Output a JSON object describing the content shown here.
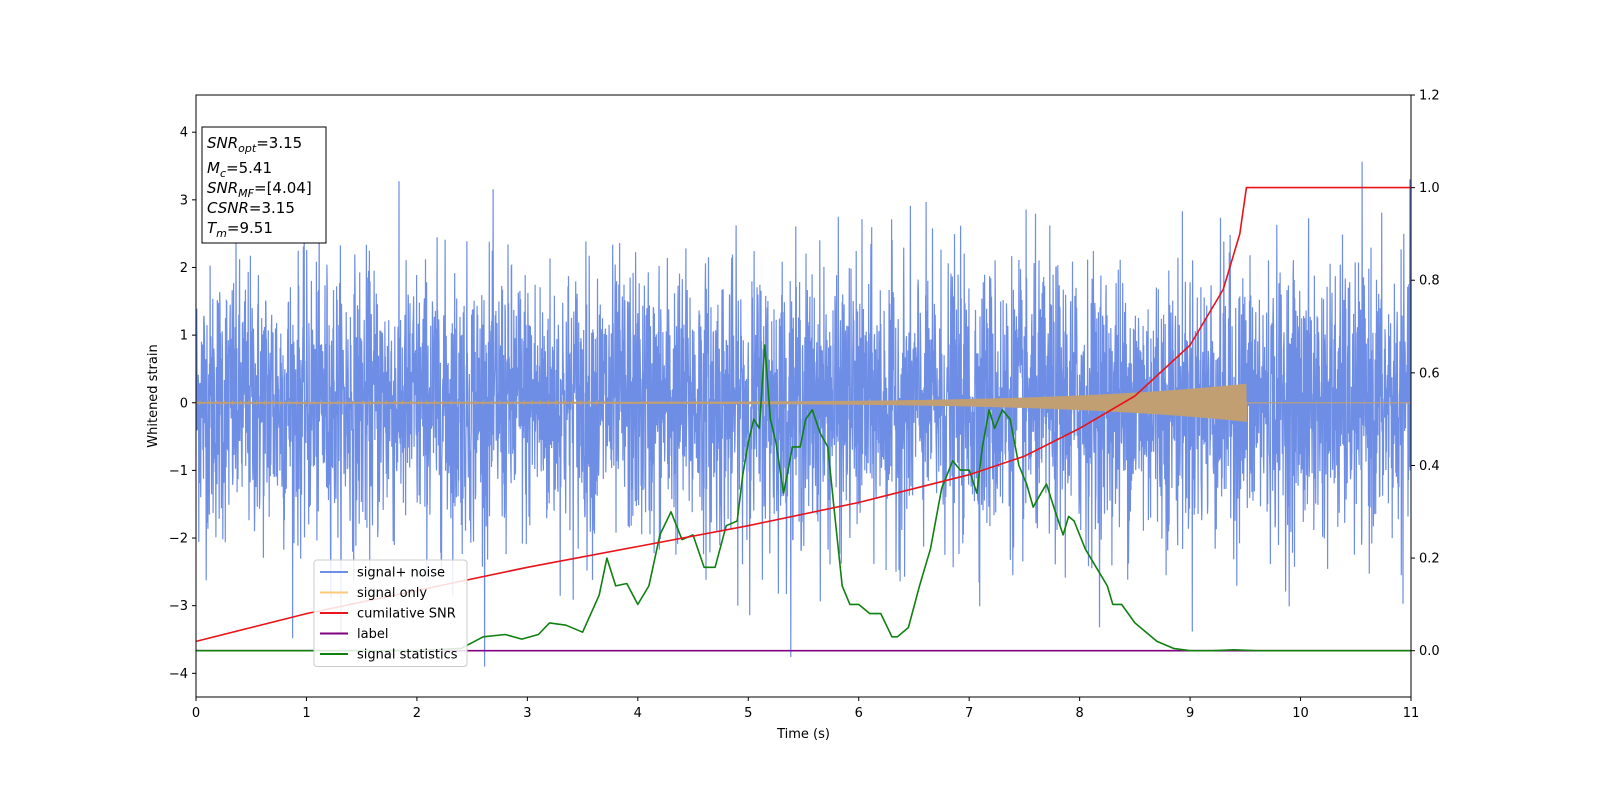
{
  "chart_data": {
    "type": "line",
    "xlabel": "Time (s)",
    "ylabel": "Whitened strain",
    "xlim": [
      0,
      11
    ],
    "ylim_left": [
      -4.35,
      4.55
    ],
    "ylim_right": [
      -0.1,
      1.2
    ],
    "x_ticks": [
      0,
      1,
      2,
      3,
      4,
      5,
      6,
      7,
      8,
      9,
      10,
      11
    ],
    "y_ticks_left": [
      -4,
      -3,
      -2,
      -1,
      0,
      1,
      2,
      3,
      4
    ],
    "y_ticks_right": [
      0.0,
      0.2,
      0.4,
      0.6,
      0.8,
      1.0,
      1.2
    ],
    "grid": false,
    "legend_position": "lower-left",
    "series": [
      {
        "name": "signal+ noise",
        "axis": "left",
        "color": "#6e8ee6",
        "style": "dense noise, approx range -3.9 to 4.0",
        "points": [
          [
            0,
            0.2
          ],
          [
            1,
            -0.3
          ],
          [
            2,
            0.4
          ],
          [
            3,
            -0.5
          ],
          [
            4,
            0.3
          ],
          [
            5,
            -0.2
          ],
          [
            6,
            0.5
          ],
          [
            7,
            -0.4
          ],
          [
            8,
            0.2
          ],
          [
            9,
            -0.1
          ],
          [
            10,
            0.3
          ],
          [
            11,
            0.0
          ]
        ]
      },
      {
        "name": "signal only",
        "axis": "left",
        "color": "#fbc97a",
        "style": "chirp growing to amplitude ~0.28 at 9.51 s, then zero",
        "points": [
          [
            0,
            0.0
          ],
          [
            9.51,
            0.0
          ],
          [
            11,
            0.0
          ]
        ]
      },
      {
        "name": "cumilative SNR",
        "axis": "right",
        "color": "#e8141a",
        "points": [
          [
            0,
            0.02
          ],
          [
            0.5,
            0.05
          ],
          [
            1,
            0.08
          ],
          [
            2,
            0.13
          ],
          [
            3,
            0.18
          ],
          [
            4,
            0.225
          ],
          [
            5,
            0.27
          ],
          [
            6,
            0.32
          ],
          [
            7,
            0.38
          ],
          [
            7.5,
            0.42
          ],
          [
            8,
            0.48
          ],
          [
            8.5,
            0.55
          ],
          [
            9,
            0.66
          ],
          [
            9.3,
            0.78
          ],
          [
            9.45,
            0.9
          ],
          [
            9.51,
            1.0
          ],
          [
            11,
            1.0
          ]
        ]
      },
      {
        "name": "label",
        "axis": "right",
        "color": "#800080",
        "points": [
          [
            0,
            0.0
          ],
          [
            11,
            0.0
          ]
        ]
      },
      {
        "name": "signal statistics",
        "axis": "right",
        "color": "#118011",
        "points": [
          [
            0,
            0.0
          ],
          [
            2.0,
            0.0
          ],
          [
            2.4,
            0.005
          ],
          [
            2.6,
            0.03
          ],
          [
            2.8,
            0.035
          ],
          [
            2.95,
            0.025
          ],
          [
            3.1,
            0.035
          ],
          [
            3.2,
            0.06
          ],
          [
            3.35,
            0.055
          ],
          [
            3.5,
            0.04
          ],
          [
            3.65,
            0.12
          ],
          [
            3.72,
            0.2
          ],
          [
            3.8,
            0.14
          ],
          [
            3.9,
            0.145
          ],
          [
            4.0,
            0.1
          ],
          [
            4.1,
            0.14
          ],
          [
            4.2,
            0.25
          ],
          [
            4.3,
            0.3
          ],
          [
            4.4,
            0.24
          ],
          [
            4.5,
            0.25
          ],
          [
            4.6,
            0.18
          ],
          [
            4.7,
            0.18
          ],
          [
            4.8,
            0.27
          ],
          [
            4.9,
            0.28
          ],
          [
            4.95,
            0.38
          ],
          [
            5.0,
            0.45
          ],
          [
            5.05,
            0.5
          ],
          [
            5.1,
            0.48
          ],
          [
            5.15,
            0.66
          ],
          [
            5.2,
            0.5
          ],
          [
            5.25,
            0.45
          ],
          [
            5.32,
            0.34
          ],
          [
            5.4,
            0.44
          ],
          [
            5.47,
            0.44
          ],
          [
            5.52,
            0.5
          ],
          [
            5.58,
            0.52
          ],
          [
            5.65,
            0.47
          ],
          [
            5.72,
            0.44
          ],
          [
            5.78,
            0.3
          ],
          [
            5.85,
            0.14
          ],
          [
            5.92,
            0.1
          ],
          [
            6.0,
            0.1
          ],
          [
            6.1,
            0.08
          ],
          [
            6.2,
            0.08
          ],
          [
            6.3,
            0.03
          ],
          [
            6.35,
            0.03
          ],
          [
            6.45,
            0.05
          ],
          [
            6.55,
            0.14
          ],
          [
            6.65,
            0.22
          ],
          [
            6.75,
            0.35
          ],
          [
            6.85,
            0.41
          ],
          [
            6.92,
            0.39
          ],
          [
            7.0,
            0.39
          ],
          [
            7.07,
            0.34
          ],
          [
            7.12,
            0.44
          ],
          [
            7.18,
            0.52
          ],
          [
            7.23,
            0.48
          ],
          [
            7.3,
            0.52
          ],
          [
            7.37,
            0.5
          ],
          [
            7.45,
            0.4
          ],
          [
            7.52,
            0.36
          ],
          [
            7.58,
            0.31
          ],
          [
            7.65,
            0.34
          ],
          [
            7.7,
            0.36
          ],
          [
            7.78,
            0.3
          ],
          [
            7.85,
            0.25
          ],
          [
            7.9,
            0.29
          ],
          [
            7.95,
            0.28
          ],
          [
            8.05,
            0.22
          ],
          [
            8.15,
            0.18
          ],
          [
            8.25,
            0.14
          ],
          [
            8.3,
            0.1
          ],
          [
            8.38,
            0.1
          ],
          [
            8.5,
            0.06
          ],
          [
            8.7,
            0.02
          ],
          [
            8.85,
            0.005
          ],
          [
            9.0,
            0.0
          ],
          [
            9.2,
            0.0
          ],
          [
            9.4,
            0.002
          ],
          [
            9.6,
            0.0
          ],
          [
            11,
            0.0
          ]
        ]
      }
    ],
    "legend": [
      {
        "name": "signal+ noise",
        "color": "#6e8ee6"
      },
      {
        "name": "signal only",
        "color": "#fbc97a"
      },
      {
        "name": "cumilative SNR",
        "color": "#e8141a"
      },
      {
        "name": "label",
        "color": "#800080"
      },
      {
        "name": "signal statistics",
        "color": "#118011"
      }
    ],
    "info_box": {
      "lines": [
        {
          "main": "SNR",
          "sub": "opt",
          "value": "=3.15"
        },
        {
          "main": "M",
          "sub": "c",
          "value": "=5.41"
        },
        {
          "main": "SNR",
          "sub": "MF",
          "value": "=[4.04]"
        },
        {
          "main": "CSNR",
          "sub": "",
          "value": "=3.15"
        },
        {
          "main": "T",
          "sub": "m",
          "value": "=9.51"
        }
      ]
    }
  }
}
